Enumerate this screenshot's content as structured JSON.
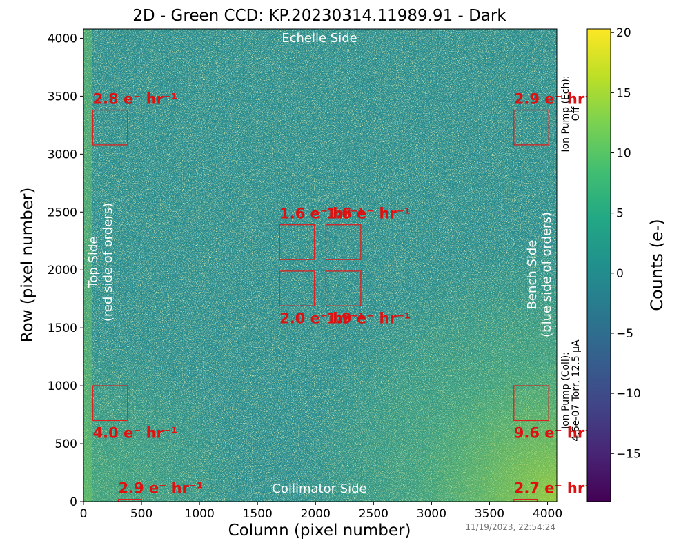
{
  "chart_data": {
    "type": "heatmap",
    "title": "2D - Green CCD: KP.20230314.11989.91 - Dark",
    "xlabel": "Column (pixel number)",
    "ylabel": "Row (pixel number)",
    "xlim": [
      0,
      4080
    ],
    "ylim": [
      0,
      4080
    ],
    "x_ticks": [
      0,
      500,
      1000,
      1500,
      2000,
      2500,
      3000,
      3500,
      4000
    ],
    "y_ticks": [
      0,
      500,
      1000,
      1500,
      2000,
      2500,
      3000,
      3500,
      4000
    ],
    "colorbar": {
      "label": "Counts (e-)",
      "range": [
        -19,
        20.3
      ],
      "ticks": [
        -15,
        -10,
        -5,
        0,
        5,
        10,
        15,
        20
      ],
      "colormap": "viridis"
    },
    "side_labels": {
      "top": "Echelle Side",
      "bottom": "Collimator Side",
      "left_line1": "Top Side",
      "left_line2": "(red side of orders)",
      "right_line1": "Bench Side",
      "right_line2": "(blue side of orders)"
    },
    "regions": [
      {
        "x0": 80,
        "x1": 380,
        "y0": 3080,
        "y1": 3380,
        "rate": "2.8",
        "label_pos": "above"
      },
      {
        "x0": 3710,
        "x1": 4010,
        "y0": 3080,
        "y1": 3380,
        "rate": "2.9",
        "label_pos": "above"
      },
      {
        "x0": 1690,
        "x1": 1990,
        "y0": 2090,
        "y1": 2390,
        "rate": "1.6",
        "label_pos": "above"
      },
      {
        "x0": 2090,
        "x1": 2390,
        "y0": 2090,
        "y1": 2390,
        "rate": "1.6",
        "label_pos": "above"
      },
      {
        "x0": 1690,
        "x1": 1990,
        "y0": 1690,
        "y1": 1990,
        "rate": "2.0",
        "label_pos": "below"
      },
      {
        "x0": 2090,
        "x1": 2390,
        "y0": 1690,
        "y1": 1990,
        "rate": "1.9",
        "label_pos": "below"
      },
      {
        "x0": 80,
        "x1": 380,
        "y0": 700,
        "y1": 1000,
        "rate": "4.0",
        "label_pos": "below"
      },
      {
        "x0": 3710,
        "x1": 4010,
        "y0": 700,
        "y1": 1000,
        "rate": "9.6",
        "label_pos": "below"
      },
      {
        "x0": 300,
        "x1": 500,
        "y0": 0,
        "y1": 20,
        "rate": "2.9",
        "label_pos": "above"
      },
      {
        "x0": 3710,
        "x1": 3910,
        "y0": 0,
        "y1": 20,
        "rate": "2.7",
        "label_pos": "above"
      }
    ],
    "rate_unit": "e⁻ hr⁻¹",
    "annotations": {
      "ion_pump_ech_line1": "Ion Pump (Ech):",
      "ion_pump_ech_line2": "Off",
      "ion_pump_coll_line1": "Ion Pump (Coll):",
      "ion_pump_coll_line2": "4.6e-07 Torr, 12.5 μA",
      "timestamp": "11/19/2023, 22:54:24"
    }
  },
  "colors": {
    "region_outline": "#dd2020",
    "region_text": "#e01010",
    "side_label_text": "#ffffff",
    "viridis_low": "#440154",
    "viridis_mid": "#21908d",
    "viridis_high": "#fde725"
  }
}
